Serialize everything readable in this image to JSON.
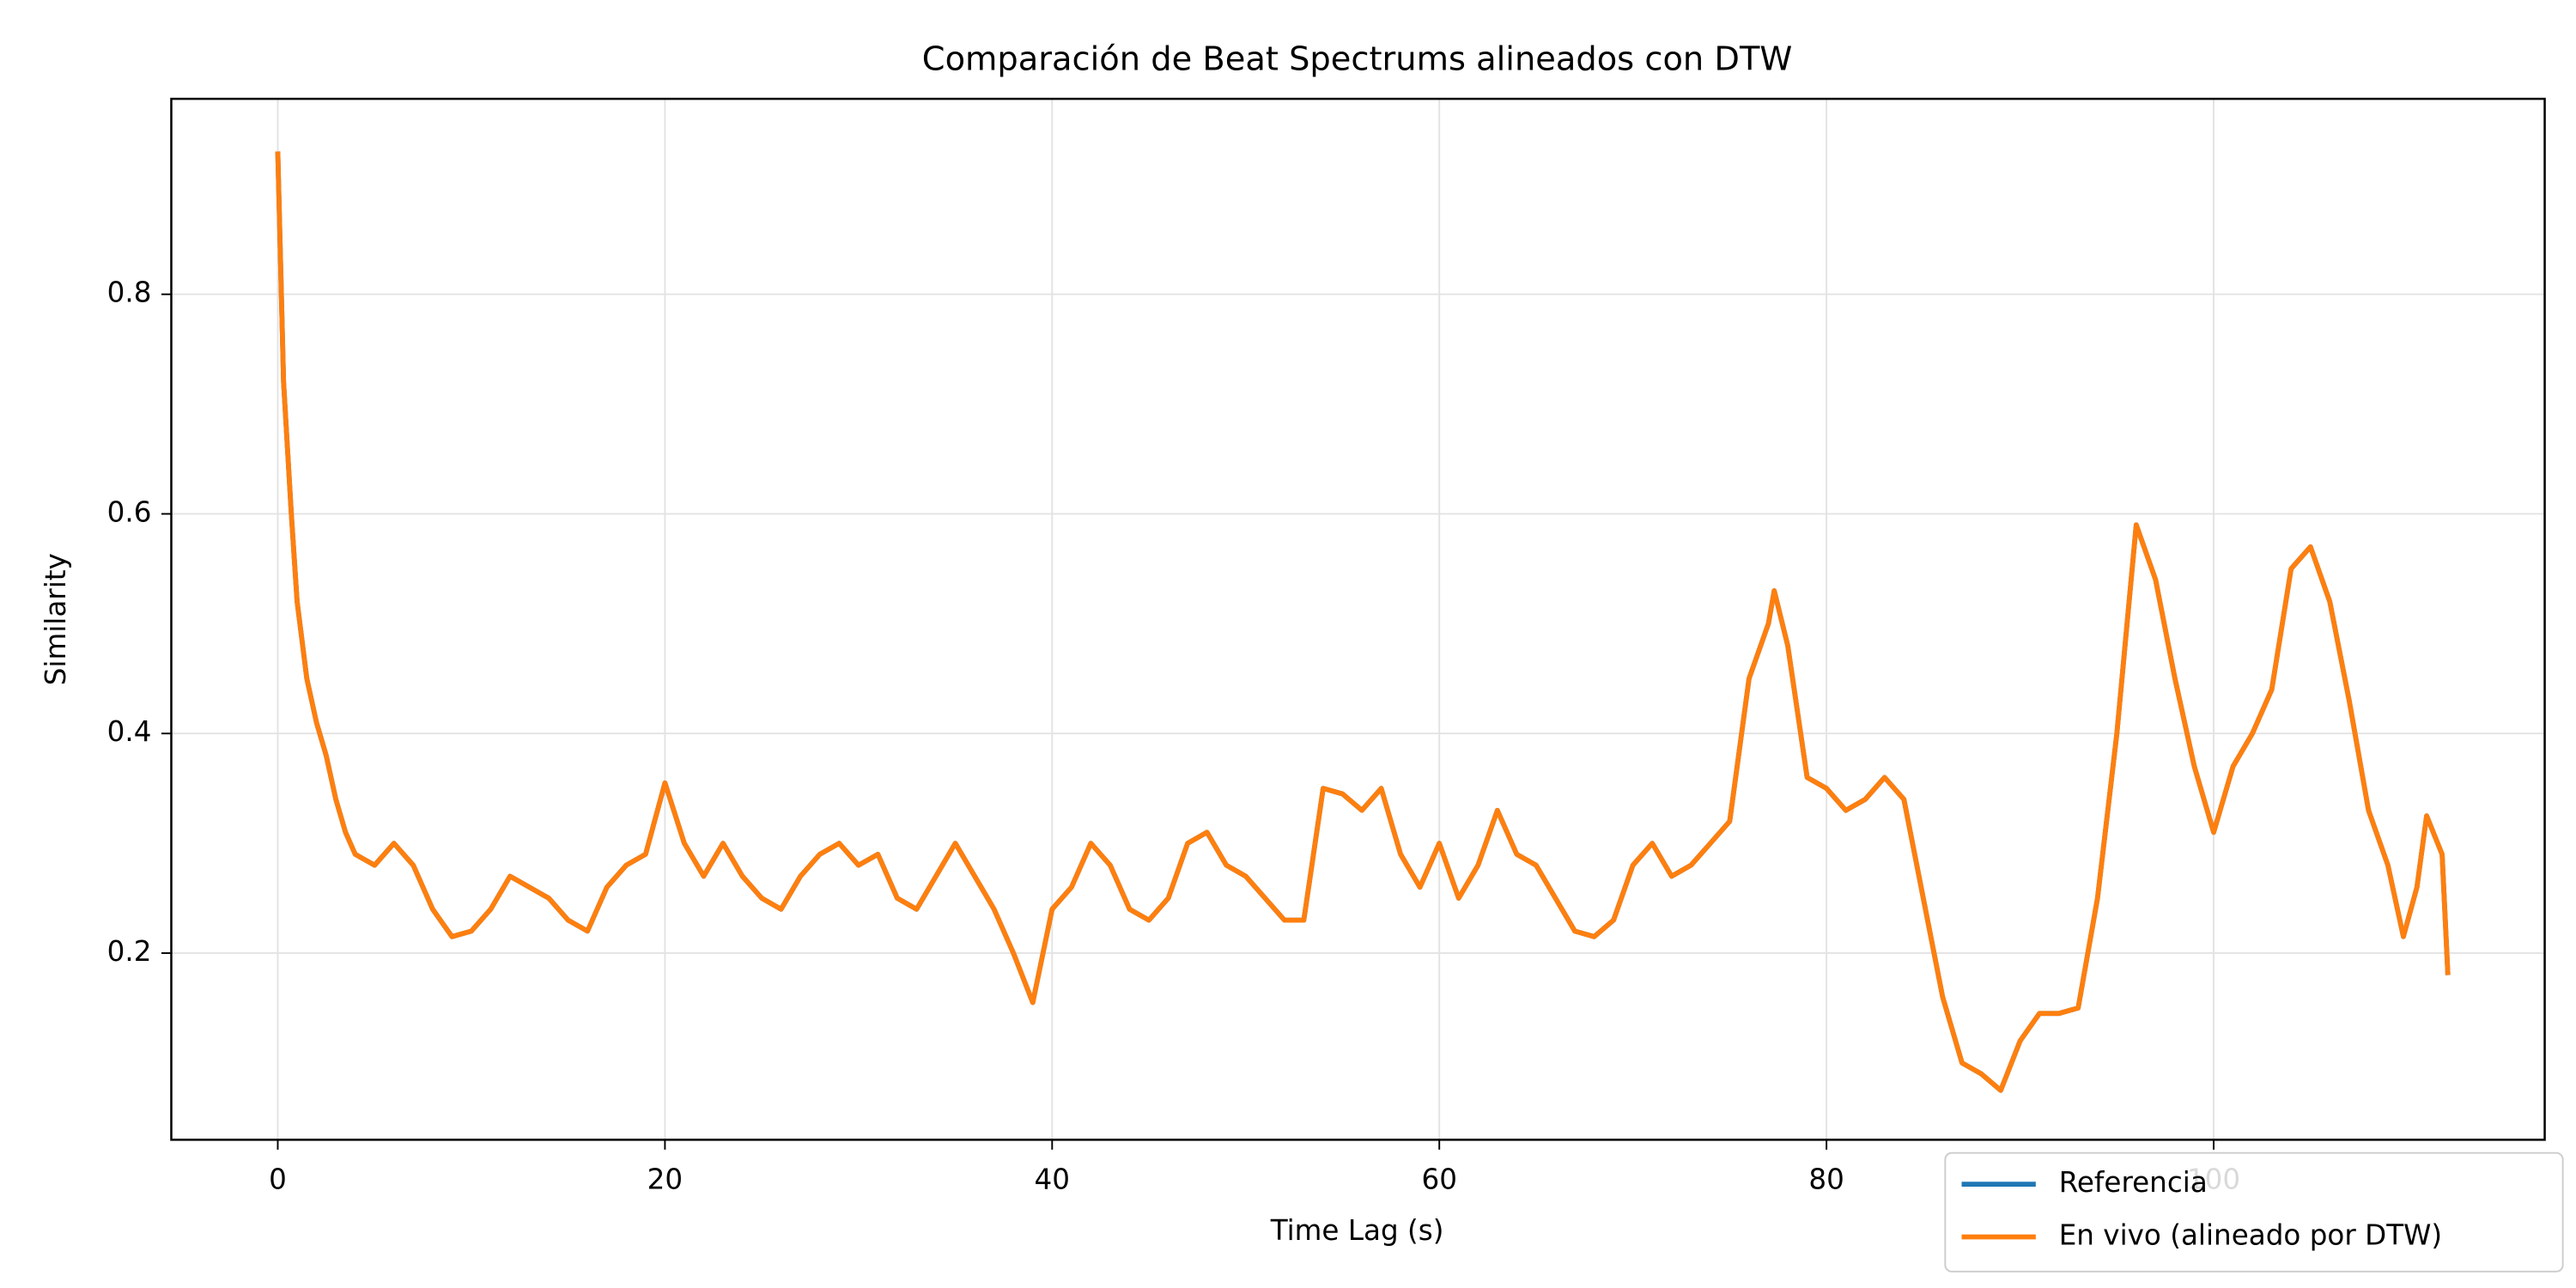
{
  "chart_data": {
    "type": "line",
    "title": "Comparación de Beat Spectrums alineados con DTW",
    "x_label": "Time Lag (s)",
    "y_label": "Similarity",
    "x": [
      0,
      0.3,
      0.7,
      1,
      1.5,
      2,
      2.5,
      3,
      3.5,
      4,
      5,
      6,
      7,
      8,
      9,
      10,
      11,
      12,
      13,
      14,
      15,
      16,
      17,
      18,
      19,
      20,
      21,
      22,
      23,
      24,
      25,
      26,
      27,
      28,
      29,
      30,
      31,
      32,
      33,
      34,
      35,
      36,
      37,
      38,
      39,
      40,
      41,
      42,
      43,
      44,
      45,
      46,
      47,
      48,
      49,
      50,
      51,
      52,
      53,
      54,
      55,
      56,
      57,
      58,
      59,
      60,
      61,
      62,
      63,
      64,
      65,
      66,
      67,
      68,
      69,
      70,
      71,
      72,
      73,
      74,
      75,
      76,
      77,
      77.3,
      78,
      79,
      80,
      81,
      82,
      83,
      84,
      85,
      86,
      87,
      88,
      89,
      90,
      91,
      92,
      93,
      94,
      95,
      96,
      97,
      98,
      99,
      100,
      101,
      102,
      103,
      104,
      105,
      106,
      107,
      108,
      109,
      109.8,
      110.5,
      111,
      111.8,
      112.1
    ],
    "series": [
      {
        "name": "Referencia",
        "color": "#1f77b4",
        "values": [
          0.93,
          0.72,
          0.6,
          0.52,
          0.45,
          0.41,
          0.38,
          0.34,
          0.31,
          0.29,
          0.28,
          0.3,
          0.28,
          0.24,
          0.215,
          0.22,
          0.24,
          0.27,
          0.26,
          0.25,
          0.23,
          0.22,
          0.26,
          0.28,
          0.29,
          0.355,
          0.3,
          0.27,
          0.3,
          0.27,
          0.25,
          0.24,
          0.27,
          0.29,
          0.3,
          0.28,
          0.29,
          0.25,
          0.24,
          0.27,
          0.3,
          0.27,
          0.24,
          0.2,
          0.155,
          0.24,
          0.26,
          0.3,
          0.28,
          0.24,
          0.23,
          0.25,
          0.3,
          0.31,
          0.28,
          0.27,
          0.25,
          0.23,
          0.23,
          0.35,
          0.345,
          0.33,
          0.35,
          0.29,
          0.26,
          0.3,
          0.25,
          0.28,
          0.33,
          0.29,
          0.28,
          0.25,
          0.22,
          0.215,
          0.23,
          0.28,
          0.3,
          0.27,
          0.28,
          0.3,
          0.32,
          0.45,
          0.5,
          0.53,
          0.48,
          0.36,
          0.35,
          0.33,
          0.34,
          0.36,
          0.34,
          0.25,
          0.16,
          0.1,
          0.09,
          0.075,
          0.12,
          0.145,
          0.145,
          0.15,
          0.25,
          0.4,
          0.59,
          0.54,
          0.45,
          0.37,
          0.31,
          0.37,
          0.4,
          0.44,
          0.55,
          0.57,
          0.52,
          0.43,
          0.33,
          0.28,
          0.215,
          0.26,
          0.325,
          0.29,
          0.18
        ]
      },
      {
        "name": "En vivo (alineado por DTW)",
        "color": "#ff7f0e",
        "values": [
          0.93,
          0.72,
          0.6,
          0.52,
          0.45,
          0.41,
          0.38,
          0.34,
          0.31,
          0.29,
          0.28,
          0.3,
          0.28,
          0.24,
          0.215,
          0.22,
          0.24,
          0.27,
          0.26,
          0.25,
          0.23,
          0.22,
          0.26,
          0.28,
          0.29,
          0.355,
          0.3,
          0.27,
          0.3,
          0.27,
          0.25,
          0.24,
          0.27,
          0.29,
          0.3,
          0.28,
          0.29,
          0.25,
          0.24,
          0.27,
          0.3,
          0.27,
          0.24,
          0.2,
          0.155,
          0.24,
          0.26,
          0.3,
          0.28,
          0.24,
          0.23,
          0.25,
          0.3,
          0.31,
          0.28,
          0.27,
          0.25,
          0.23,
          0.23,
          0.35,
          0.345,
          0.33,
          0.35,
          0.29,
          0.26,
          0.3,
          0.25,
          0.28,
          0.33,
          0.29,
          0.28,
          0.25,
          0.22,
          0.215,
          0.23,
          0.28,
          0.3,
          0.27,
          0.28,
          0.3,
          0.32,
          0.45,
          0.5,
          0.53,
          0.48,
          0.36,
          0.35,
          0.33,
          0.34,
          0.36,
          0.34,
          0.25,
          0.16,
          0.1,
          0.09,
          0.075,
          0.12,
          0.145,
          0.145,
          0.15,
          0.25,
          0.4,
          0.59,
          0.54,
          0.45,
          0.37,
          0.31,
          0.37,
          0.4,
          0.44,
          0.55,
          0.57,
          0.52,
          0.43,
          0.33,
          0.28,
          0.215,
          0.26,
          0.325,
          0.29,
          0.18
        ]
      }
    ],
    "xlim": [
      -5.5,
      117.1
    ],
    "ylim": [
      0.03,
      0.978
    ],
    "xticks": [
      0,
      20,
      40,
      60,
      80,
      100
    ],
    "yticks": [
      0.2,
      0.4,
      0.6,
      0.8
    ],
    "grid": true,
    "legend": "lower right"
  }
}
